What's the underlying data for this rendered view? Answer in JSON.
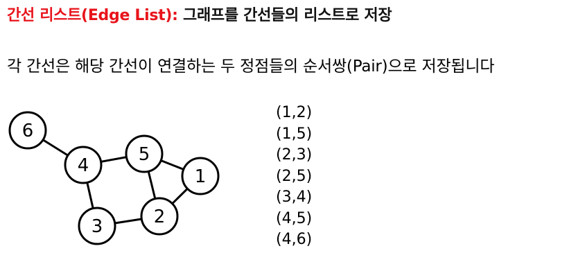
{
  "heading": {
    "accent": "간선 리스트(Edge List):",
    "rest": " 그래프를 간선들의 리스트로 저장",
    "accent_color": "#e8141b"
  },
  "description": "각 간선은 해당 간선이 연결하는 두 정점들의 순서쌍(Pair)으로 저장됩니다",
  "graph": {
    "nodes": [
      {
        "id": "1",
        "label": "1"
      },
      {
        "id": "2",
        "label": "2"
      },
      {
        "id": "3",
        "label": "3"
      },
      {
        "id": "4",
        "label": "4"
      },
      {
        "id": "5",
        "label": "5"
      },
      {
        "id": "6",
        "label": "6"
      }
    ],
    "edges": [
      [
        "1",
        "2"
      ],
      [
        "1",
        "5"
      ],
      [
        "2",
        "3"
      ],
      [
        "2",
        "5"
      ],
      [
        "3",
        "4"
      ],
      [
        "4",
        "5"
      ],
      [
        "4",
        "6"
      ]
    ]
  },
  "edge_list": [
    "(1,2)",
    "(1,5)",
    "(2,3)",
    "(2,5)",
    "(3,4)",
    "(4,5)",
    "(4,6)"
  ]
}
